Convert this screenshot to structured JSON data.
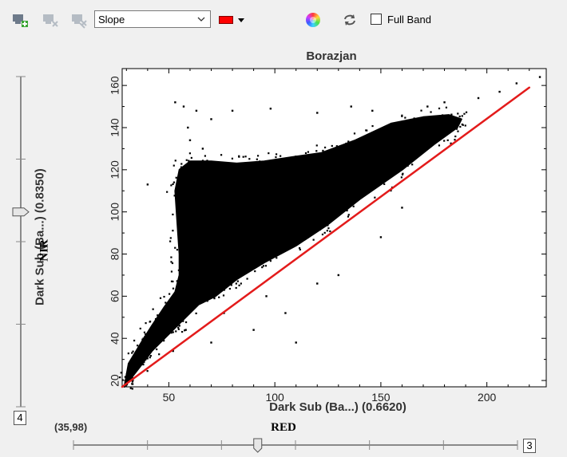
{
  "toolbar": {
    "mode_select": {
      "value": "Slope"
    },
    "line_color": "#ff0000",
    "full_band_label": "Full Band",
    "full_band_checked": false
  },
  "chart_data": {
    "type": "scatter",
    "title": "Borazjan",
    "xlabel": "Dark Sub (Ba...) (0.6620)",
    "ylabel": "Dark Sub (Ba...) (0.8350)",
    "xlim": [
      28,
      228
    ],
    "ylim": [
      17,
      168
    ],
    "x_ticks": [
      50,
      100,
      150,
      200
    ],
    "y_ticks": [
      20,
      40,
      60,
      80,
      100,
      120,
      140,
      160
    ],
    "point_color": "#000000",
    "fit_line": {
      "color": "#e31b1b",
      "x": [
        28,
        220
      ],
      "y": [
        17,
        159
      ]
    },
    "cloud_polygon": [
      [
        29,
        17
      ],
      [
        36,
        26
      ],
      [
        42,
        34
      ],
      [
        48,
        40
      ],
      [
        56,
        48
      ],
      [
        64,
        56
      ],
      [
        72,
        60
      ],
      [
        82,
        68
      ],
      [
        95,
        76
      ],
      [
        110,
        84
      ],
      [
        125,
        94
      ],
      [
        140,
        106
      ],
      [
        160,
        120
      ],
      [
        175,
        132
      ],
      [
        186,
        140
      ],
      [
        188,
        144
      ],
      [
        182,
        146
      ],
      [
        170,
        145
      ],
      [
        155,
        142
      ],
      [
        138,
        134
      ],
      [
        122,
        128
      ],
      [
        108,
        126
      ],
      [
        95,
        124
      ],
      [
        82,
        123
      ],
      [
        70,
        124
      ],
      [
        60,
        124
      ],
      [
        55,
        120
      ],
      [
        53,
        110
      ],
      [
        54,
        95
      ],
      [
        55,
        80
      ],
      [
        55,
        70
      ],
      [
        53,
        62
      ],
      [
        48,
        55
      ],
      [
        42,
        46
      ],
      [
        37,
        38
      ],
      [
        31,
        28
      ]
    ],
    "outliers": [
      [
        40,
        113
      ],
      [
        53,
        152
      ],
      [
        57,
        150
      ],
      [
        63,
        148
      ],
      [
        70,
        144
      ],
      [
        80,
        148
      ],
      [
        98,
        149
      ],
      [
        120,
        147
      ],
      [
        136,
        150
      ],
      [
        146,
        148
      ],
      [
        172,
        150
      ],
      [
        180,
        152
      ],
      [
        196,
        154
      ],
      [
        206,
        157
      ],
      [
        214,
        161
      ],
      [
        225,
        164
      ],
      [
        44,
        38
      ],
      [
        40,
        40
      ],
      [
        48,
        46
      ],
      [
        58,
        44
      ],
      [
        70,
        38
      ],
      [
        76,
        52
      ],
      [
        90,
        44
      ],
      [
        110,
        38
      ],
      [
        105,
        52
      ],
      [
        130,
        70
      ],
      [
        150,
        88
      ],
      [
        160,
        102
      ],
      [
        120,
        66
      ],
      [
        96,
        60
      ],
      [
        66,
        130
      ],
      [
        60,
        134
      ],
      [
        59,
        140
      ],
      [
        55,
        46
      ],
      [
        52,
        34
      ],
      [
        39,
        30
      ],
      [
        33,
        20
      ]
    ]
  },
  "status": {
    "coordinate": "(35,98)"
  },
  "sliders": {
    "vertical": {
      "value": 4,
      "level": 0.41
    },
    "horizontal": {
      "value": 3,
      "level": 0.415
    }
  },
  "labels": {
    "y_band": "NIR",
    "x_band": "RED"
  }
}
